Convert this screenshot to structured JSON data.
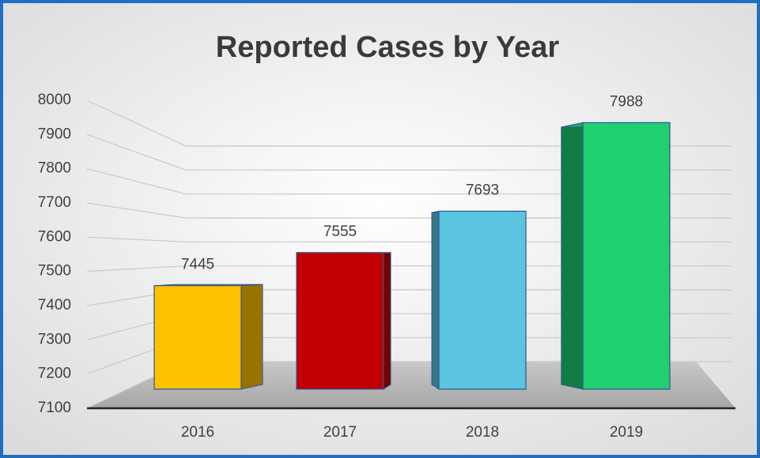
{
  "chart_data": {
    "type": "bar3d",
    "title": "Reported Cases by Year",
    "categories": [
      "2016",
      "2017",
      "2018",
      "2019"
    ],
    "values": [
      7445,
      7555,
      7693,
      7988
    ],
    "colors": [
      "#ffc000",
      "#c00000",
      "#5bc5e0",
      "#1fcf70"
    ],
    "ylim": [
      7100,
      8000
    ],
    "yticks": [
      7100,
      7200,
      7300,
      7400,
      7500,
      7600,
      7700,
      7800,
      7900,
      8000
    ],
    "grid": true
  }
}
